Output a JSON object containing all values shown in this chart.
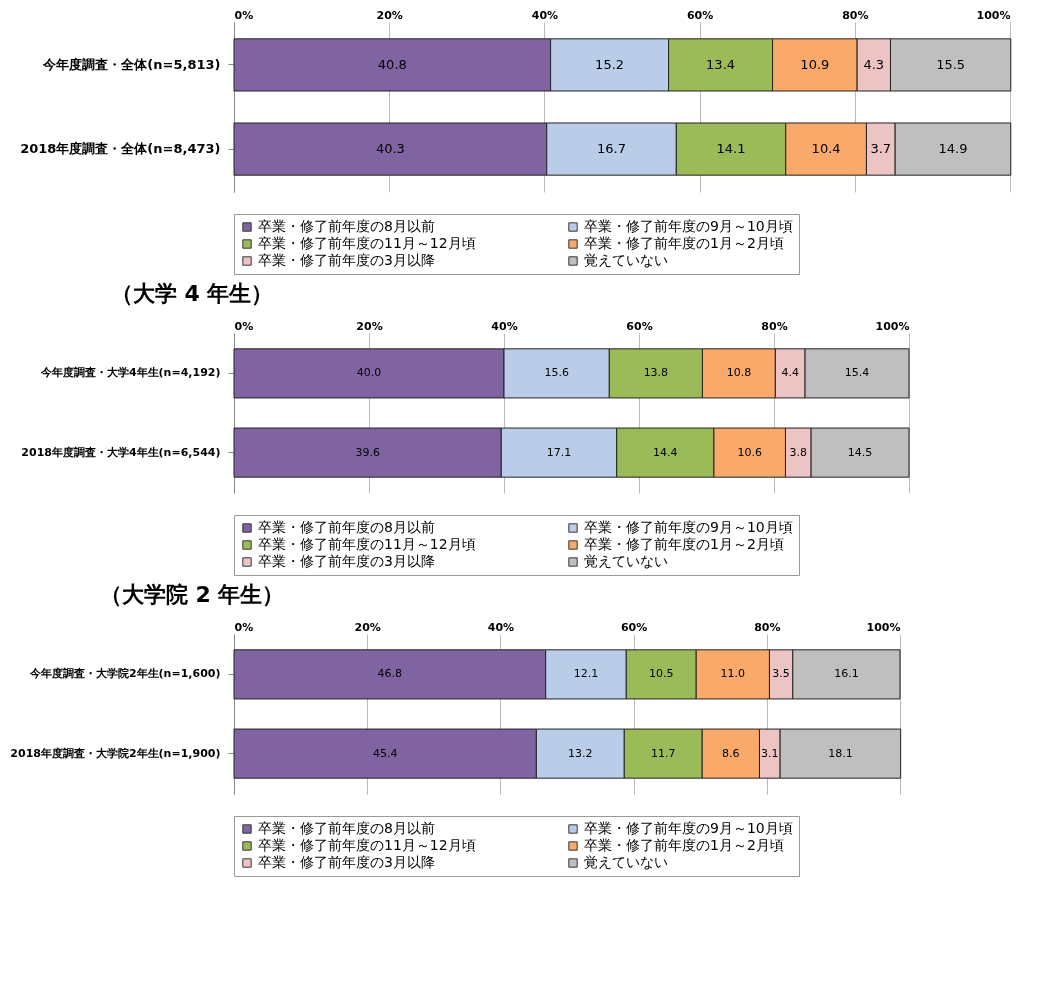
{
  "chart_data": [
    {
      "type": "bar",
      "orientation": "horizontal",
      "stacked": true,
      "categories": [
        "今年度調査・全体(n=5,813)",
        "2018年度調査・全体(n=8,473)"
      ],
      "series": [
        {
          "name": "卒業・修了前年度の8月以前",
          "color": "#8064a2",
          "values": [
            40.8,
            40.3
          ],
          "value_labels": [
            "40.8",
            "40.3"
          ]
        },
        {
          "name": "卒業・修了前年度の9月～10月頃",
          "color": "#b9cde8",
          "values": [
            15.2,
            16.7
          ],
          "value_labels": [
            "15.2",
            "16.7"
          ]
        },
        {
          "name": "卒業・修了前年度の11月～12月頃",
          "color": "#9bbb59",
          "values": [
            13.4,
            14.1
          ],
          "value_labels": [
            "13.4",
            "14.1"
          ]
        },
        {
          "name": "卒業・修了前年度の1月～2月頃",
          "color": "#f9a96a",
          "values": [
            10.9,
            10.4
          ],
          "value_labels": [
            "10.9",
            "10.4"
          ]
        },
        {
          "name": "卒業・修了前年度の3月以降",
          "color": "#ecc4c3",
          "values": [
            4.3,
            3.7
          ],
          "value_labels": [
            "4.3",
            "3.7"
          ]
        },
        {
          "name": "覚えていない",
          "color": "#bfbfbf",
          "values": [
            15.5,
            14.9
          ],
          "value_labels": [
            "15.5",
            "14.9"
          ]
        }
      ],
      "xlim": [
        0,
        100
      ],
      "xticks": [
        {
          "value": 0,
          "label": "0%"
        },
        {
          "value": 20,
          "label": "20%"
        },
        {
          "value": 40,
          "label": "40%"
        },
        {
          "value": 60,
          "label": "60%"
        },
        {
          "value": 80,
          "label": "80%"
        },
        {
          "value": 100,
          "label": "100%"
        }
      ],
      "grid": "x",
      "legend": "bottom"
    },
    {
      "type": "bar",
      "orientation": "horizontal",
      "stacked": true,
      "title": "（大学 4 年生）",
      "categories": [
        "今年度調査・大学4年生(n=4,192)",
        "2018年度調査・大学4年生(n=6,544)"
      ],
      "series": [
        {
          "name": "卒業・修了前年度の8月以前",
          "color": "#8064a2",
          "values": [
            40.0,
            39.6
          ],
          "value_labels": [
            "40.0",
            "39.6"
          ]
        },
        {
          "name": "卒業・修了前年度の9月～10月頃",
          "color": "#b9cde8",
          "values": [
            15.6,
            17.1
          ],
          "value_labels": [
            "15.6",
            "17.1"
          ]
        },
        {
          "name": "卒業・修了前年度の11月～12月頃",
          "color": "#9bbb59",
          "values": [
            13.8,
            14.4
          ],
          "value_labels": [
            "13.8",
            "14.4"
          ]
        },
        {
          "name": "卒業・修了前年度の1月～2月頃",
          "color": "#f9a96a",
          "values": [
            10.8,
            10.6
          ],
          "value_labels": [
            "10.8",
            "10.6"
          ]
        },
        {
          "name": "卒業・修了前年度の3月以降",
          "color": "#ecc4c3",
          "values": [
            4.4,
            3.8
          ],
          "value_labels": [
            "4.4",
            "3.8"
          ]
        },
        {
          "name": "覚えていない",
          "color": "#bfbfbf",
          "values": [
            15.4,
            14.5
          ],
          "value_labels": [
            "15.4",
            "14.5"
          ]
        }
      ],
      "xlim": [
        0,
        100
      ],
      "xticks": [
        {
          "value": 0,
          "label": "0%"
        },
        {
          "value": 20,
          "label": "20%"
        },
        {
          "value": 40,
          "label": "40%"
        },
        {
          "value": 60,
          "label": "60%"
        },
        {
          "value": 80,
          "label": "80%"
        },
        {
          "value": 100,
          "label": "100%"
        }
      ],
      "grid": "x",
      "legend": "bottom"
    },
    {
      "type": "bar",
      "orientation": "horizontal",
      "stacked": true,
      "title": "（大学院 2 年生）",
      "categories": [
        "今年度調査・大学院2年生(n=1,600)",
        "2018年度調査・大学院2年生(n=1,900)"
      ],
      "series": [
        {
          "name": "卒業・修了前年度の8月以前",
          "color": "#8064a2",
          "values": [
            46.8,
            45.4
          ],
          "value_labels": [
            "46.8",
            "45.4"
          ]
        },
        {
          "name": "卒業・修了前年度の9月～10月頃",
          "color": "#b9cde8",
          "values": [
            12.1,
            13.2
          ],
          "value_labels": [
            "12.1",
            "13.2"
          ]
        },
        {
          "name": "卒業・修了前年度の11月～12月頃",
          "color": "#9bbb59",
          "values": [
            10.5,
            11.7
          ],
          "value_labels": [
            "10.5",
            "11.7"
          ]
        },
        {
          "name": "卒業・修了前年度の1月～2月頃",
          "color": "#f9a96a",
          "values": [
            11.0,
            8.6
          ],
          "value_labels": [
            "11.0",
            "8.6"
          ]
        },
        {
          "name": "卒業・修了前年度の3月以降",
          "color": "#ecc4c3",
          "values": [
            3.5,
            3.1
          ],
          "value_labels": [
            "3.5",
            "3.1"
          ]
        },
        {
          "name": "覚えていない",
          "color": "#bfbfbf",
          "values": [
            16.1,
            18.1
          ],
          "value_labels": [
            "16.1",
            "18.1"
          ]
        }
      ],
      "xlim": [
        0,
        100
      ],
      "xticks": [
        {
          "value": 0,
          "label": "0%"
        },
        {
          "value": 20,
          "label": "20%"
        },
        {
          "value": 40,
          "label": "40%"
        },
        {
          "value": 60,
          "label": "60%"
        },
        {
          "value": 80,
          "label": "80%"
        },
        {
          "value": 100,
          "label": "100%"
        }
      ],
      "grid": "x",
      "legend": "bottom"
    }
  ]
}
